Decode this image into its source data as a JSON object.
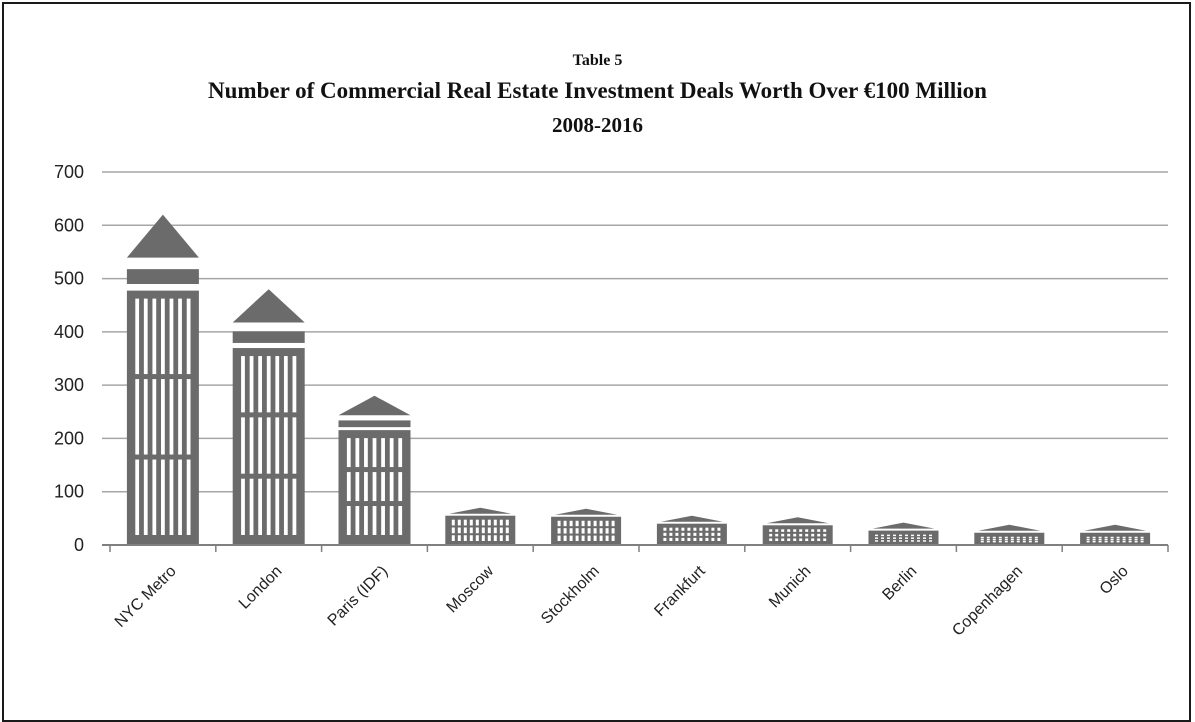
{
  "caption": {
    "table_number": "Table 5",
    "title": "Number of Commercial Real Estate Investment Deals Worth Over €100 Million",
    "subtitle": "2008-2016"
  },
  "colors": {
    "building": "#6b6b6b",
    "grid": "#a6a6a6",
    "axis": "#7f7f7f",
    "border": "#1a1a1a"
  },
  "chart_data": {
    "type": "bar",
    "title": "Number of Commercial Real Estate Investment Deals Worth Over €100 Million",
    "subtitle": "2008-2016",
    "categories": [
      "NYC Metro",
      "London",
      "Paris (IDF)",
      "Moscow",
      "Stockholm",
      "Frankfurt",
      "Munich",
      "Berlin",
      "Copenhagen",
      "Oslo"
    ],
    "values": [
      620,
      480,
      280,
      70,
      68,
      55,
      52,
      42,
      38,
      38
    ],
    "ylim": [
      0,
      700
    ],
    "yticks": [
      "0",
      "100",
      "200",
      "300",
      "400",
      "500",
      "600",
      "700"
    ],
    "grid": true,
    "xlabel": "",
    "ylabel": "",
    "legend": "none",
    "marker": "building-pictogram"
  }
}
